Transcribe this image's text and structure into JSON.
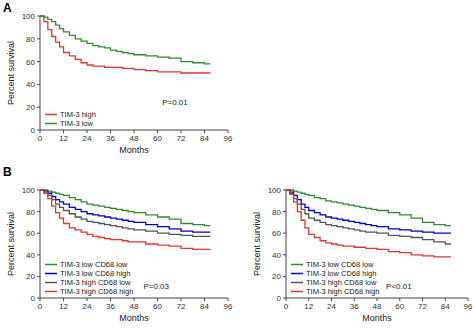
{
  "chart_data": [
    {
      "type": "line",
      "line_style": "step",
      "title": "A",
      "annotations": [
        "P=0.01"
      ],
      "x": [
        0,
        2,
        4,
        6,
        8,
        10,
        12,
        15,
        18,
        21,
        24,
        27,
        30,
        33,
        36,
        39,
        42,
        45,
        48,
        54,
        60,
        66,
        72,
        78,
        84,
        87
      ],
      "series": [
        {
          "name": "TIM-3 high",
          "color": "#e63232",
          "values": [
            100,
            95,
            88,
            82,
            77,
            73,
            68,
            65,
            62,
            59,
            57,
            56,
            56,
            55,
            55,
            55,
            54,
            54,
            53,
            52,
            51,
            51,
            50,
            50,
            50,
            50
          ]
        },
        {
          "name": "TIM-3 low",
          "color": "#2e8b2e",
          "values": [
            100,
            99,
            97,
            95,
            92,
            89,
            86,
            83,
            80,
            78,
            76,
            74,
            73,
            72,
            70,
            69,
            68,
            67,
            66,
            65,
            64,
            63,
            60,
            59,
            58,
            58
          ]
        }
      ],
      "xlabel": "Months",
      "ylabel": "Percent survival",
      "xlim": [
        0,
        96
      ],
      "ylim": [
        0,
        100
      ],
      "xticks": [
        0,
        12,
        24,
        36,
        48,
        60,
        72,
        84,
        96
      ],
      "yticks": [
        0,
        20,
        40,
        60,
        80,
        100
      ],
      "legend": "lower left",
      "grid": false
    },
    {
      "type": "line",
      "line_style": "step",
      "title": "B",
      "annotations": [
        "P=0.03"
      ],
      "x": [
        0,
        2,
        4,
        6,
        8,
        10,
        12,
        15,
        18,
        21,
        24,
        27,
        30,
        33,
        36,
        39,
        42,
        45,
        48,
        54,
        60,
        66,
        72,
        78,
        84,
        87
      ],
      "series": [
        {
          "name": "TIM-3 low CD68 low",
          "color": "#2e8b2e",
          "values": [
            100,
            100,
            99,
            98,
            97,
            96,
            95,
            93,
            91,
            89,
            87,
            86,
            85,
            84,
            83,
            82,
            81,
            80,
            79,
            77,
            75,
            73,
            69,
            68,
            67,
            67
          ]
        },
        {
          "name": "TIM-3 low CD68 high",
          "color": "#0000cc",
          "values": [
            100,
            99,
            97,
            94,
            91,
            89,
            87,
            84,
            82,
            80,
            78,
            77,
            76,
            75,
            74,
            73,
            72,
            71,
            70,
            68,
            66,
            64,
            62,
            61,
            61,
            61
          ]
        },
        {
          "name": "TIM-3 high CD68 low",
          "color": "#555555",
          "values": [
            100,
            98,
            95,
            91,
            87,
            84,
            81,
            78,
            75,
            73,
            71,
            70,
            69,
            68,
            67,
            66,
            65,
            64,
            63,
            62,
            60,
            59,
            58,
            57,
            57,
            57
          ]
        },
        {
          "name": "TIM-3 high CD68 high",
          "color": "#e63232",
          "values": [
            100,
            97,
            92,
            85,
            79,
            74,
            69,
            65,
            63,
            61,
            59,
            57,
            56,
            55,
            54,
            54,
            53,
            52,
            52,
            50,
            49,
            48,
            46,
            45,
            45,
            45
          ]
        }
      ],
      "xlabel": "Months",
      "ylabel": "Percent survival",
      "xlim": [
        0,
        96
      ],
      "ylim": [
        0,
        100
      ],
      "xticks": [
        0,
        12,
        24,
        36,
        48,
        60,
        72,
        84,
        96
      ],
      "yticks": [
        0,
        20,
        40,
        60,
        80,
        100
      ],
      "legend": "lower left",
      "grid": false
    },
    {
      "type": "line",
      "line_style": "step",
      "annotations": [
        "P<0.01"
      ],
      "x": [
        0,
        2,
        4,
        6,
        8,
        10,
        12,
        15,
        18,
        21,
        24,
        27,
        30,
        33,
        36,
        39,
        42,
        45,
        48,
        54,
        60,
        66,
        72,
        78,
        84,
        87
      ],
      "series": [
        {
          "name": "TIM-3 low CD68 low",
          "color": "#2e8b2e",
          "values": [
            100,
            100,
            99,
            98,
            97,
            96,
            95,
            93,
            92,
            90,
            89,
            88,
            87,
            86,
            85,
            84,
            83,
            82,
            81,
            79,
            77,
            74,
            70,
            68,
            67,
            67
          ]
        },
        {
          "name": "TIM-3 low CD68 high",
          "color": "#0000cc",
          "values": [
            100,
            98,
            95,
            91,
            87,
            84,
            81,
            79,
            77,
            75,
            74,
            73,
            72,
            71,
            70,
            69,
            68,
            67,
            66,
            64,
            63,
            62,
            61,
            60,
            60,
            60
          ]
        },
        {
          "name": "TIM-3 high CD68 low",
          "color": "#555555",
          "values": [
            100,
            97,
            92,
            87,
            82,
            78,
            74,
            72,
            70,
            68,
            67,
            66,
            65,
            64,
            63,
            62,
            61,
            61,
            60,
            58,
            57,
            56,
            54,
            52,
            50,
            50
          ]
        },
        {
          "name": "TIM-3 high CD68 high",
          "color": "#e63232",
          "values": [
            100,
            96,
            89,
            80,
            72,
            65,
            59,
            56,
            53,
            51,
            50,
            49,
            48,
            48,
            47,
            47,
            46,
            46,
            45,
            43,
            42,
            40,
            39,
            38,
            38,
            38
          ]
        }
      ],
      "xlabel": "Months",
      "ylabel": "Percent survival",
      "xlim": [
        0,
        96
      ],
      "ylim": [
        0,
        100
      ],
      "xticks": [
        0,
        12,
        24,
        36,
        48,
        60,
        72,
        84,
        96
      ],
      "yticks": [
        0,
        20,
        40,
        60,
        80,
        100
      ],
      "legend": "lower left",
      "grid": false
    }
  ]
}
